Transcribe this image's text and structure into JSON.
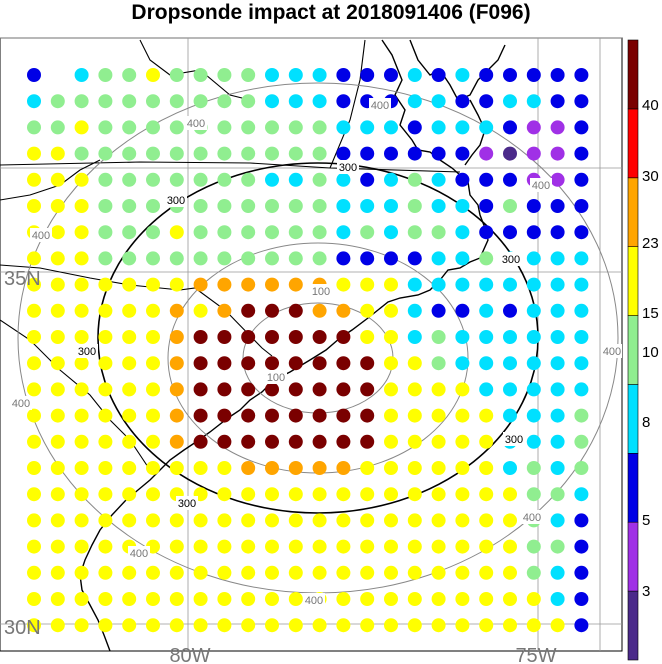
{
  "title": "Dropsonde impact at 2018091406 (F096)",
  "labels": {
    "lat_35": "35N",
    "lat_30": "30N",
    "lon_80": "80W",
    "lon_75": "75W",
    "contour_100": "100",
    "contour_300": "300",
    "contour_400": "400"
  },
  "colorbar": {
    "tick_labels": [
      "40",
      "30",
      "23",
      "15",
      "10",
      "8",
      "5",
      "3"
    ],
    "colors": [
      "#4b2a8a",
      "#a030e6",
      "#0000e6",
      "#00e0ff",
      "#90ee90",
      "#ffff00",
      "#ffa500",
      "#ff0000",
      "#7a0000"
    ]
  },
  "grid": {
    "cols": 24,
    "rows": 22,
    "codes": [
      "b.cggyggggcccbbbcbcbbbbb",
      "cgggggggggcccbbbccbbccbb",
      "ggyggggggggggcccbcccbppb",
      "yygggggggggggbbbbbbpqppb",
      "yyygggggggccgcbcgcbbbppb",
      "yyyggggggggggcccgccbgbbb",
      "yyygggyggggggcgcggcbbbbb",
      "yyyggggggggggbbbbccgcccc",
      "yyyyyyyooooooyyycccccccc",
      "yyyyyyoyoRRRooyycbbcbccc",
      "yyyyyyoRRRRRRRyycgcccccc",
      "yyyyyyoRRRRRRRRyygcccccc",
      "yyyyyyoRRRRRRRRyyyyccccc",
      "yyyyyyoRRRRRRRRyyyyycccg",
      "yyyyyyoRRRRRRRRyyyyycccg",
      "yyyyyyyyyoooooyyyyyycgcg",
      "yyyyyyyyyyyyyyyyyyyyyggc",
      "yyyyyyyyyyyyyyyyyyyyygcb",
      "yyyyyyyyyyyyyyyyyyyyyggb",
      "yyyyyyyyyyyyyyyyyyyyygcb",
      "yyyyyyyyyyyyyyyyyyyyyycb",
      "yyyyyyyyyyyyyyyyyyyyyyyb"
    ]
  }
}
